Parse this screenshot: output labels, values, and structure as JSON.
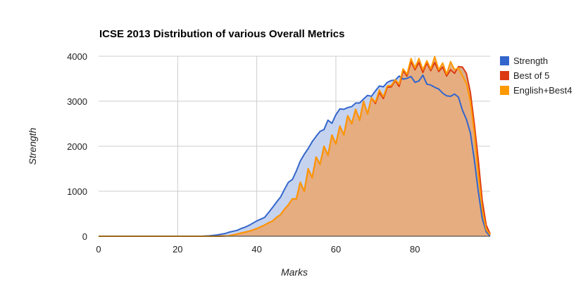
{
  "chart_data": {
    "type": "area",
    "title": "ICSE 2013 Distribution of various Overall Metrics",
    "xlabel": "Marks",
    "ylabel": "Strength",
    "xlim": [
      0,
      99
    ],
    "ylim": [
      0,
      4000
    ],
    "x_ticks": [
      "0",
      "20",
      "40",
      "60",
      "80"
    ],
    "y_ticks": [
      "0",
      "1000",
      "2000",
      "3000",
      "4000"
    ],
    "grid": true,
    "legend_position": "right",
    "series": [
      {
        "name": "Strength",
        "color": "#3366cc",
        "fill_color": "#c3d1ee",
        "points": [
          [
            0,
            0
          ],
          [
            10,
            0
          ],
          [
            20,
            0
          ],
          [
            26,
            0
          ],
          [
            28,
            10
          ],
          [
            30,
            30
          ],
          [
            32,
            60
          ],
          [
            33,
            90
          ],
          [
            34,
            110
          ],
          [
            35,
            130
          ],
          [
            36,
            170
          ],
          [
            37,
            200
          ],
          [
            38,
            240
          ],
          [
            39,
            290
          ],
          [
            40,
            340
          ],
          [
            41,
            380
          ],
          [
            42,
            420
          ],
          [
            43,
            530
          ],
          [
            44,
            640
          ],
          [
            45,
            760
          ],
          [
            46,
            870
          ],
          [
            47,
            1040
          ],
          [
            48,
            1200
          ],
          [
            49,
            1260
          ],
          [
            50,
            1450
          ],
          [
            51,
            1670
          ],
          [
            52,
            1820
          ],
          [
            53,
            1950
          ],
          [
            54,
            2100
          ],
          [
            55,
            2220
          ],
          [
            56,
            2330
          ],
          [
            57,
            2370
          ],
          [
            58,
            2580
          ],
          [
            59,
            2510
          ],
          [
            60,
            2700
          ],
          [
            61,
            2830
          ],
          [
            62,
            2820
          ],
          [
            63,
            2860
          ],
          [
            64,
            2880
          ],
          [
            65,
            2960
          ],
          [
            66,
            2960
          ],
          [
            67,
            3050
          ],
          [
            68,
            3130
          ],
          [
            69,
            3110
          ],
          [
            70,
            3230
          ],
          [
            71,
            3340
          ],
          [
            72,
            3320
          ],
          [
            73,
            3420
          ],
          [
            74,
            3460
          ],
          [
            75,
            3470
          ],
          [
            76,
            3560
          ],
          [
            77,
            3490
          ],
          [
            78,
            3510
          ],
          [
            79,
            3550
          ],
          [
            80,
            3420
          ],
          [
            81,
            3450
          ],
          [
            82,
            3580
          ],
          [
            83,
            3380
          ],
          [
            84,
            3360
          ],
          [
            85,
            3310
          ],
          [
            86,
            3270
          ],
          [
            87,
            3180
          ],
          [
            88,
            3120
          ],
          [
            89,
            3110
          ],
          [
            90,
            3160
          ],
          [
            91,
            3090
          ],
          [
            92,
            2800
          ],
          [
            93,
            2600
          ],
          [
            94,
            2300
          ],
          [
            95,
            1700
          ],
          [
            96,
            1000
          ],
          [
            97,
            400
          ],
          [
            98,
            100
          ],
          [
            99,
            0
          ]
        ]
      },
      {
        "name": "Best of 5",
        "color": "#dc3912",
        "fill_color": "#d5aa88",
        "points": [
          [
            0,
            0
          ],
          [
            10,
            0
          ],
          [
            20,
            0
          ],
          [
            30,
            0
          ],
          [
            33,
            10
          ],
          [
            34,
            30
          ],
          [
            35,
            50
          ],
          [
            36,
            70
          ],
          [
            37,
            90
          ],
          [
            38,
            110
          ],
          [
            39,
            140
          ],
          [
            40,
            170
          ],
          [
            41,
            210
          ],
          [
            42,
            250
          ],
          [
            43,
            300
          ],
          [
            44,
            340
          ],
          [
            45,
            420
          ],
          [
            46,
            480
          ],
          [
            47,
            600
          ],
          [
            48,
            700
          ],
          [
            49,
            830
          ],
          [
            50,
            830
          ],
          [
            51,
            1200
          ],
          [
            52,
            1000
          ],
          [
            53,
            1500
          ],
          [
            54,
            1300
          ],
          [
            55,
            1760
          ],
          [
            56,
            1600
          ],
          [
            57,
            2000
          ],
          [
            58,
            1800
          ],
          [
            59,
            2250
          ],
          [
            60,
            2050
          ],
          [
            61,
            2450
          ],
          [
            62,
            2250
          ],
          [
            63,
            2680
          ],
          [
            64,
            2500
          ],
          [
            65,
            2820
          ],
          [
            66,
            2580
          ],
          [
            67,
            3000
          ],
          [
            68,
            2720
          ],
          [
            69,
            3080
          ],
          [
            70,
            2950
          ],
          [
            71,
            3200
          ],
          [
            72,
            3060
          ],
          [
            73,
            3310
          ],
          [
            74,
            3320
          ],
          [
            75,
            3460
          ],
          [
            76,
            3330
          ],
          [
            77,
            3680
          ],
          [
            78,
            3560
          ],
          [
            79,
            3880
          ],
          [
            80,
            3700
          ],
          [
            81,
            3860
          ],
          [
            82,
            3640
          ],
          [
            83,
            3850
          ],
          [
            84,
            3680
          ],
          [
            85,
            3860
          ],
          [
            86,
            3660
          ],
          [
            87,
            3760
          ],
          [
            88,
            3560
          ],
          [
            89,
            3700
          ],
          [
            90,
            3620
          ],
          [
            91,
            3770
          ],
          [
            92,
            3760
          ],
          [
            93,
            3620
          ],
          [
            94,
            3200
          ],
          [
            95,
            2500
          ],
          [
            96,
            1700
          ],
          [
            97,
            800
          ],
          [
            98,
            250
          ],
          [
            99,
            50
          ]
        ]
      },
      {
        "name": "English+Best4",
        "color": "#ff9900",
        "fill_color": "#e7ad80",
        "points": [
          [
            0,
            0
          ],
          [
            10,
            0
          ],
          [
            20,
            0
          ],
          [
            30,
            0
          ],
          [
            33,
            10
          ],
          [
            34,
            30
          ],
          [
            35,
            50
          ],
          [
            36,
            70
          ],
          [
            37,
            90
          ],
          [
            38,
            110
          ],
          [
            39,
            140
          ],
          [
            40,
            170
          ],
          [
            41,
            210
          ],
          [
            42,
            250
          ],
          [
            43,
            300
          ],
          [
            44,
            340
          ],
          [
            45,
            420
          ],
          [
            46,
            480
          ],
          [
            47,
            600
          ],
          [
            48,
            700
          ],
          [
            49,
            830
          ],
          [
            50,
            830
          ],
          [
            51,
            1200
          ],
          [
            52,
            1000
          ],
          [
            53,
            1500
          ],
          [
            54,
            1300
          ],
          [
            55,
            1760
          ],
          [
            56,
            1600
          ],
          [
            57,
            2000
          ],
          [
            58,
            1800
          ],
          [
            59,
            2250
          ],
          [
            60,
            2050
          ],
          [
            61,
            2450
          ],
          [
            62,
            2250
          ],
          [
            63,
            2680
          ],
          [
            64,
            2500
          ],
          [
            65,
            2820
          ],
          [
            66,
            2580
          ],
          [
            67,
            3000
          ],
          [
            68,
            2720
          ],
          [
            69,
            3080
          ],
          [
            70,
            2980
          ],
          [
            71,
            3250
          ],
          [
            72,
            3100
          ],
          [
            73,
            3340
          ],
          [
            74,
            3350
          ],
          [
            75,
            3480
          ],
          [
            76,
            3380
          ],
          [
            77,
            3720
          ],
          [
            78,
            3600
          ],
          [
            79,
            3950
          ],
          [
            80,
            3740
          ],
          [
            81,
            3950
          ],
          [
            82,
            3700
          ],
          [
            83,
            3900
          ],
          [
            84,
            3720
          ],
          [
            85,
            3990
          ],
          [
            86,
            3700
          ],
          [
            87,
            3850
          ],
          [
            88,
            3600
          ],
          [
            89,
            3880
          ],
          [
            90,
            3700
          ],
          [
            91,
            3740
          ],
          [
            92,
            3560
          ],
          [
            93,
            3400
          ],
          [
            94,
            3000
          ],
          [
            95,
            2300
          ],
          [
            96,
            1400
          ],
          [
            97,
            600
          ],
          [
            98,
            150
          ],
          [
            99,
            30
          ]
        ]
      }
    ]
  }
}
